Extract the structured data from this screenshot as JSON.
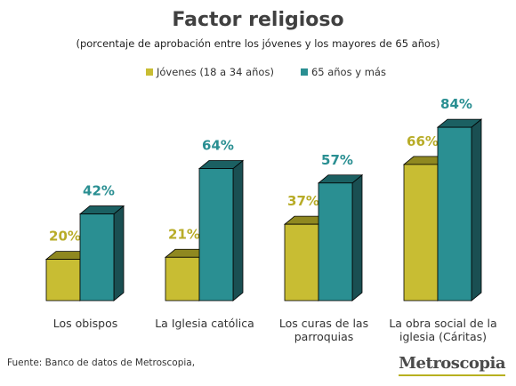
{
  "title": "Factor religioso",
  "subtitle": "(porcentaje  de aprobación entre los jóvenes y los mayores de 65 años)",
  "source": "Fuente: Banco de datos de Metroscopia,",
  "logo": "Metroscopia",
  "colors": {
    "young": "#c8bd33",
    "young_top": "#8f8820",
    "young_side": "#6b651a",
    "old": "#2a8f92",
    "old_top": "#1b6062",
    "old_side": "#1a4f52",
    "young_label": "#b8ac28",
    "old_label": "#2a8f92"
  },
  "chart_data": {
    "type": "bar",
    "title": "Factor religioso",
    "subtitle": "(porcentaje  de aprobación entre los jóvenes y los mayores de 65 años)",
    "categories": [
      "Los obispos",
      "La Iglesia católica",
      "Los curas de las parroquias",
      "La obra social de la iglesia (Cáritas)"
    ],
    "category_lines": [
      [
        "Los obispos"
      ],
      [
        "La Iglesia católica"
      ],
      [
        "Los curas de las",
        "parroquias"
      ],
      [
        "La obra social de la",
        "iglesia (Cáritas)"
      ]
    ],
    "series": [
      {
        "name": "Jóvenes (18 a 34 años)",
        "values": [
          20,
          21,
          37,
          66
        ],
        "labels": [
          "20%",
          "21%",
          "37%",
          "66%"
        ]
      },
      {
        "name": "65 años y más",
        "values": [
          42,
          64,
          57,
          84
        ],
        "labels": [
          "42%",
          "64%",
          "57%",
          "84%"
        ]
      }
    ],
    "ylim": [
      0,
      100
    ],
    "grid": false,
    "legend": "top-center"
  }
}
